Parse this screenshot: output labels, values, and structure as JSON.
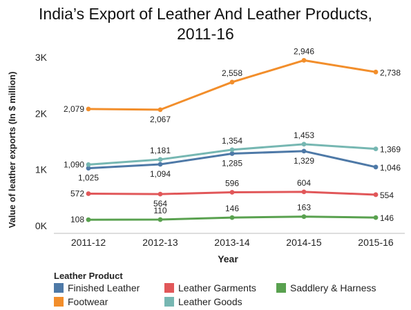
{
  "title_line1": "India’s Export of Leather And Leather Products,",
  "title_line2": "2011-16",
  "chart_data": {
    "type": "line",
    "xlabel": "Year",
    "ylabel": "Value of leather exports (In $ million)",
    "categories": [
      "2011-12",
      "2012-13",
      "2013-14",
      "2014-15",
      "2015-16"
    ],
    "ylim": [
      0,
      3000
    ],
    "yticks": [
      0,
      1000,
      2000,
      3000
    ],
    "ytick_labels": [
      "0K",
      "1K",
      "2K",
      "3K"
    ],
    "grid": false,
    "legend_title": "Leather Product",
    "legend_position": "bottom",
    "series": [
      {
        "name": "Finished Leather",
        "color": "#4e79a7",
        "values": [
          1025,
          1094,
          1285,
          1329,
          1046
        ],
        "labels": [
          "1,025",
          "1,094",
          "1,285",
          "1,329",
          "1,046"
        ]
      },
      {
        "name": "Footwear",
        "color": "#f28e2b",
        "values": [
          2079,
          2067,
          2558,
          2946,
          2738
        ],
        "labels": [
          "2,079",
          "2,067",
          "2,558",
          "2,946",
          "2,738"
        ]
      },
      {
        "name": "Leather Garments",
        "color": "#e15759",
        "values": [
          572,
          564,
          596,
          604,
          554
        ],
        "labels": [
          "572",
          "564",
          "596",
          "604",
          "554"
        ]
      },
      {
        "name": "Leather Goods",
        "color": "#76b7b2",
        "values": [
          1090,
          1181,
          1354,
          1453,
          1369
        ],
        "labels": [
          "1,090",
          "1,181",
          "1,354",
          "1,453",
          "1,369"
        ]
      },
      {
        "name": "Saddlery & Harness",
        "color": "#59a14f",
        "values": [
          108,
          110,
          146,
          163,
          146
        ],
        "labels": [
          "108",
          "110",
          "146",
          "163",
          "146"
        ]
      }
    ]
  }
}
